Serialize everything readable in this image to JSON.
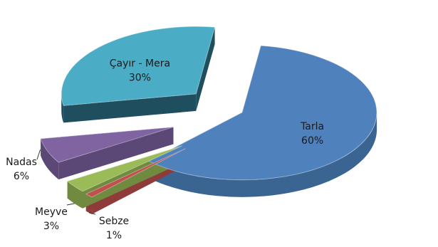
{
  "chart_data": {
    "type": "pie",
    "style": "3d-exploded",
    "title": "",
    "slices": [
      {
        "label": "Tarla",
        "value": 60,
        "value_label": "60%",
        "color": "#4f81bd",
        "side_color": "#3a6491",
        "label_pos": "inside"
      },
      {
        "label": "Sebze",
        "value": 1,
        "value_label": "1%",
        "color": "#c0504d",
        "side_color": "#8e3b39",
        "label_pos": "outside"
      },
      {
        "label": "Meyve",
        "value": 3,
        "value_label": "3%",
        "color": "#9bbb59",
        "side_color": "#708a40",
        "label_pos": "outside"
      },
      {
        "label": "Nadas",
        "value": 6,
        "value_label": "6%",
        "color": "#8064a2",
        "side_color": "#5c4876",
        "label_pos": "outside"
      },
      {
        "label": "Çayır - Mera",
        "value": 30,
        "value_label": "30%",
        "color": "#4bacc6",
        "side_color": "#1f4e5e",
        "label_pos": "inside"
      }
    ]
  }
}
